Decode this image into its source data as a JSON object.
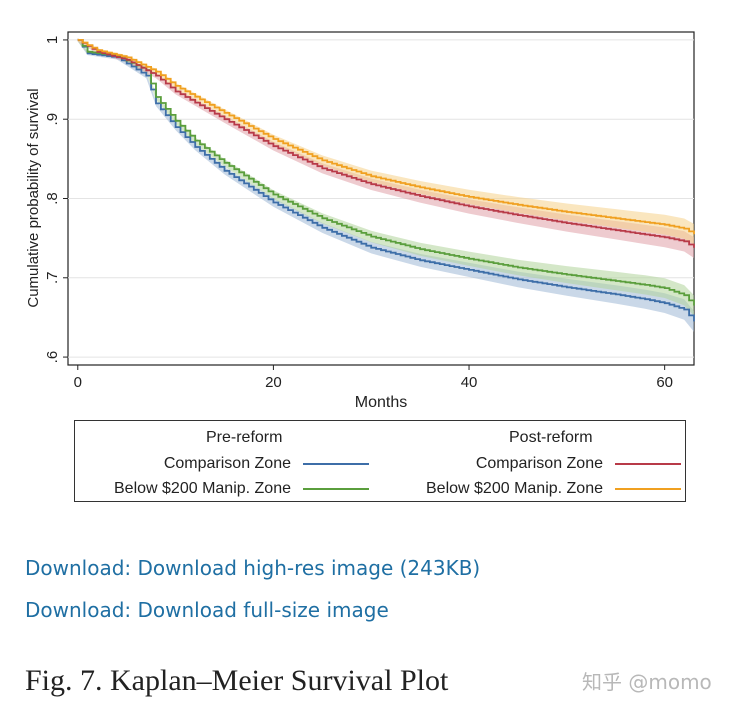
{
  "chart_data": {
    "type": "line",
    "title": "",
    "xlabel": "Months",
    "ylabel": "Cumulative probability of survival",
    "xlim": [
      -1,
      63
    ],
    "ylim": [
      0.59,
      1.01
    ],
    "xticks": [
      0,
      20,
      40,
      60
    ],
    "xtick_labels": [
      "0",
      "20",
      "40",
      "60"
    ],
    "yticks": [
      0.6,
      0.7,
      0.8,
      0.9,
      1.0
    ],
    "ytick_labels": [
      ".6",
      ".7",
      ".8",
      ".9",
      "1"
    ],
    "grid": true,
    "series": [
      {
        "name": "Pre-reform Comparison Zone",
        "color": "#3d6ea8",
        "band": "#9fb8d6",
        "x": [
          0,
          1,
          4,
          7,
          8,
          10,
          12,
          15,
          20,
          25,
          30,
          35,
          40,
          45,
          50,
          55,
          58,
          60,
          62,
          63
        ],
        "y": [
          1.0,
          0.983,
          0.978,
          0.955,
          0.92,
          0.89,
          0.865,
          0.835,
          0.795,
          0.763,
          0.738,
          0.722,
          0.71,
          0.698,
          0.688,
          0.679,
          0.673,
          0.668,
          0.66,
          0.645
        ]
      },
      {
        "name": "Pre-reform Below $200 Manip. Zone",
        "color": "#5a9e3c",
        "band": "#b0d49a",
        "x": [
          0,
          1,
          4,
          7,
          8,
          10,
          12,
          15,
          20,
          25,
          30,
          35,
          40,
          45,
          50,
          55,
          58,
          60,
          62,
          63
        ],
        "y": [
          1.0,
          0.985,
          0.98,
          0.962,
          0.928,
          0.898,
          0.873,
          0.845,
          0.805,
          0.775,
          0.752,
          0.736,
          0.724,
          0.713,
          0.704,
          0.696,
          0.691,
          0.687,
          0.678,
          0.665
        ]
      },
      {
        "name": "Post-reform Comparison Zone",
        "color": "#b83a48",
        "band": "#e0a0a8",
        "x": [
          0,
          2,
          5,
          8,
          10,
          15,
          20,
          25,
          30,
          35,
          40,
          45,
          50,
          55,
          60,
          62,
          63
        ],
        "y": [
          1.0,
          0.985,
          0.975,
          0.955,
          0.935,
          0.9,
          0.866,
          0.838,
          0.818,
          0.803,
          0.79,
          0.779,
          0.769,
          0.76,
          0.751,
          0.746,
          0.738
        ]
      },
      {
        "name": "Post-reform Below $200 Manip. Zone",
        "color": "#f0a020",
        "band": "#f6d28a",
        "x": [
          0,
          2,
          5,
          8,
          10,
          15,
          20,
          25,
          30,
          35,
          40,
          45,
          50,
          55,
          60,
          62,
          63
        ],
        "y": [
          1.0,
          0.987,
          0.978,
          0.96,
          0.942,
          0.908,
          0.875,
          0.848,
          0.828,
          0.814,
          0.802,
          0.792,
          0.783,
          0.775,
          0.767,
          0.762,
          0.755
        ]
      }
    ],
    "legend": {
      "placement": "bottom",
      "pre_heading": "Pre-reform",
      "post_heading": "Post-reform",
      "entries": [
        {
          "label": "Comparison Zone",
          "group": "pre",
          "color": "#3d6ea8"
        },
        {
          "label": "Below $200 Manip. Zone",
          "group": "pre",
          "color": "#5a9e3c"
        },
        {
          "label": "Comparison Zone",
          "group": "post",
          "color": "#b83a48"
        },
        {
          "label": "Below $200 Manip. Zone",
          "group": "post",
          "color": "#f0a020"
        }
      ]
    }
  },
  "links": {
    "high_res": "Download: Download high-res image (243KB)",
    "full_size": "Download: Download full-size image"
  },
  "caption": "Fig. 7. Kaplan–Meier Survival Plot",
  "watermark": "知乎 @momo"
}
